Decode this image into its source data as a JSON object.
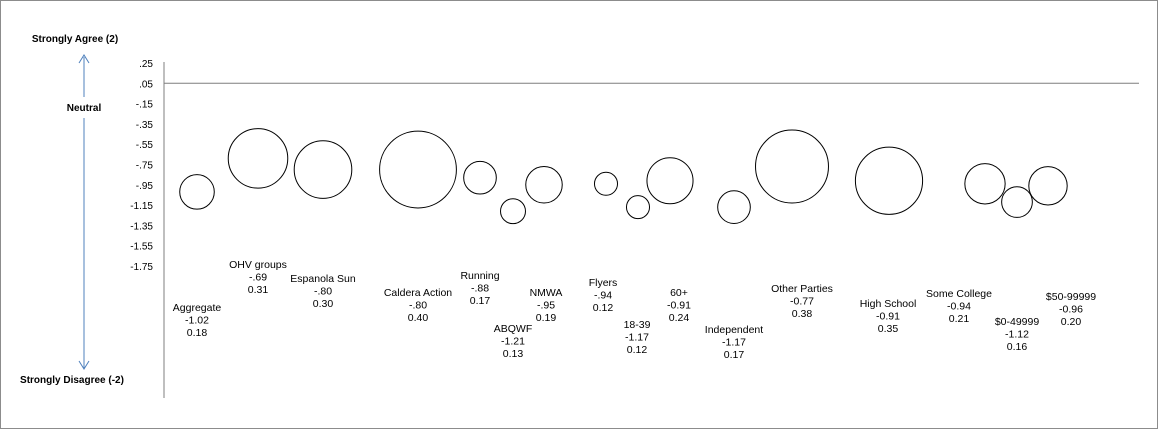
{
  "chart_data": {
    "type": "scatter",
    "title": "",
    "xlabel": "",
    "ylabel": "",
    "ylim": [
      -1.75,
      0.25
    ],
    "y_ticks": [
      ".25",
      ".05",
      "-.15",
      "-.35",
      "-.55",
      "-.75",
      "-.95",
      "-1.15",
      "-1.35",
      "-1.55",
      "-1.75"
    ],
    "y_tick_values": [
      0.25,
      0.05,
      -0.15,
      -0.35,
      -0.55,
      -0.75,
      -0.95,
      -1.15,
      -1.35,
      -1.55,
      -1.75
    ],
    "reference_line": 0.05,
    "scale_labels": {
      "top": "Strongly Agree (2)",
      "middle": "Neutral",
      "bottom": "Strongly Disagree (-2)"
    },
    "points": [
      {
        "name": "Aggregate",
        "mean": -1.02,
        "mean_label": "-1.02",
        "sd": 0.18,
        "sd_label": "0.18"
      },
      {
        "name": "OHV groups",
        "mean": -0.69,
        "mean_label": "-.69",
        "sd": 0.31,
        "sd_label": "0.31"
      },
      {
        "name": "Espanola Sun",
        "mean": -0.8,
        "mean_label": "-.80",
        "sd": 0.3,
        "sd_label": "0.30"
      },
      {
        "name": "Caldera Action",
        "mean": -0.8,
        "mean_label": "-.80",
        "sd": 0.4,
        "sd_label": "0.40"
      },
      {
        "name": "Running",
        "mean": -0.88,
        "mean_label": "-.88",
        "sd": 0.17,
        "sd_label": "0.17"
      },
      {
        "name": "ABQWF",
        "mean": -1.21,
        "mean_label": "-1.21",
        "sd": 0.13,
        "sd_label": "0.13"
      },
      {
        "name": "NMWA",
        "mean": -0.95,
        "mean_label": "-.95",
        "sd": 0.19,
        "sd_label": "0.19"
      },
      {
        "name": "Flyers",
        "mean": -0.94,
        "mean_label": "-.94",
        "sd": 0.12,
        "sd_label": "0.12"
      },
      {
        "name": "18-39",
        "mean": -1.17,
        "mean_label": "-1.17",
        "sd": 0.12,
        "sd_label": "0.12"
      },
      {
        "name": "60+",
        "mean": -0.91,
        "mean_label": "-0.91",
        "sd": 0.24,
        "sd_label": "0.24"
      },
      {
        "name": "Independent",
        "mean": -1.17,
        "mean_label": "-1.17",
        "sd": 0.17,
        "sd_label": "0.17"
      },
      {
        "name": "Other Parties",
        "mean": -0.77,
        "mean_label": "-0.77",
        "sd": 0.38,
        "sd_label": "0.38"
      },
      {
        "name": "High School",
        "mean": -0.91,
        "mean_label": "-0.91",
        "sd": 0.35,
        "sd_label": "0.35"
      },
      {
        "name": "Some College",
        "mean": -0.94,
        "mean_label": "-0.94",
        "sd": 0.21,
        "sd_label": "0.21"
      },
      {
        "name": "$0-49999",
        "mean": -1.12,
        "mean_label": "-1.12",
        "sd": 0.16,
        "sd_label": "0.16"
      },
      {
        "name": "$50-99999",
        "mean": -0.96,
        "mean_label": "-0.96",
        "sd": 0.2,
        "sd_label": "0.20"
      }
    ],
    "grid": false,
    "legend": "none",
    "colors": {
      "bubble_stroke": "#000000",
      "axis": "#7f7f7f",
      "arrow": "#4f81bd"
    }
  }
}
